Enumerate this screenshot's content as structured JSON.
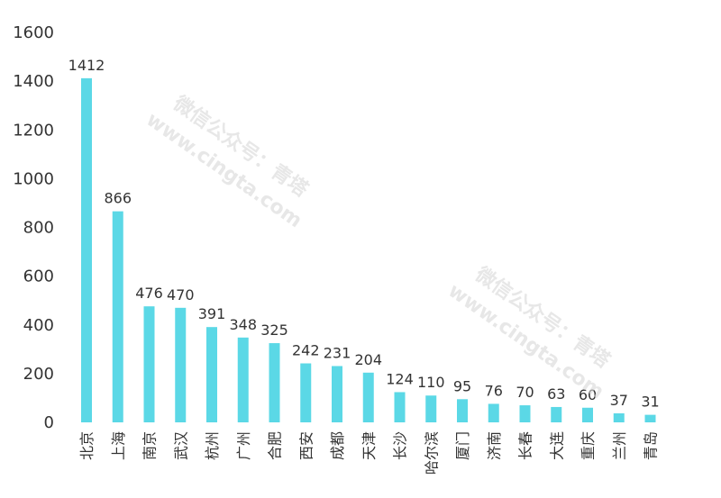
{
  "chart_data": {
    "type": "bar",
    "title": "",
    "xlabel": "",
    "ylabel": "",
    "ylim": [
      0,
      1600
    ],
    "yticks": [
      0,
      200,
      400,
      600,
      800,
      1000,
      1200,
      1400,
      1600
    ],
    "grid": false,
    "legend": "none",
    "bar_color": "#5bd8e6",
    "categories": [
      "北京",
      "上海",
      "南京",
      "武汉",
      "杭州",
      "广州",
      "合肥",
      "西安",
      "成都",
      "天津",
      "长沙",
      "哈尔滨",
      "厦门",
      "济南",
      "长春",
      "大连",
      "重庆",
      "兰州",
      "青岛"
    ],
    "values": [
      1412,
      866,
      476,
      470,
      391,
      348,
      325,
      242,
      231,
      204,
      124,
      110,
      95,
      76,
      70,
      63,
      60,
      37,
      31
    ]
  },
  "watermark": {
    "line1": "微信公众号：青塔",
    "line2": "www.cingta.com"
  }
}
